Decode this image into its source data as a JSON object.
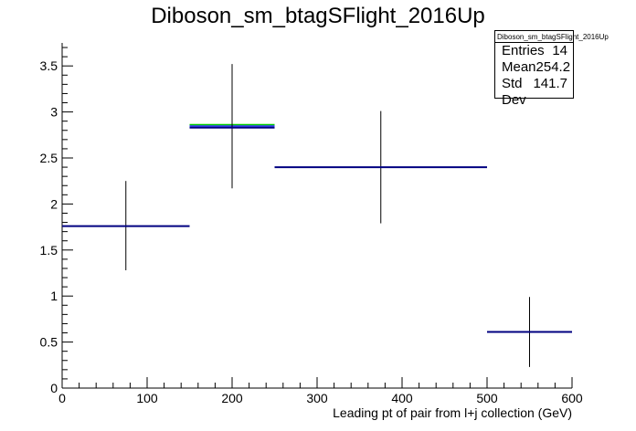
{
  "chart_data": {
    "type": "histogram",
    "title": "Diboson_sm_btagSFlight_2016Up",
    "xlabel": "Leading pt of pair from l+j collection (GeV)",
    "ylabel": "",
    "xlim": [
      0,
      600
    ],
    "ylim": [
      0,
      3.75
    ],
    "x_ticks": [
      0,
      100,
      200,
      300,
      400,
      500,
      600
    ],
    "y_ticks": [
      0,
      0.5,
      1,
      1.5,
      2,
      2.5,
      3,
      3.5
    ],
    "bins": [
      {
        "low": 0,
        "high": 150,
        "center": 75,
        "value": 1.76,
        "err_low": 1.28,
        "err_high": 2.25
      },
      {
        "low": 150,
        "high": 250,
        "center": 200,
        "value": 2.83,
        "err_low": 2.17,
        "err_high": 3.52
      },
      {
        "low": 250,
        "high": 500,
        "center": 375,
        "value": 2.4,
        "err_low": 1.79,
        "err_high": 3.01
      },
      {
        "low": 500,
        "high": 600,
        "center": 550,
        "value": 0.61,
        "err_low": 0.23,
        "err_high": 0.99
      }
    ],
    "overlay_lines": [
      {
        "x_low": 150,
        "x_high": 250,
        "y": 2.86,
        "color": "#00cc00"
      },
      {
        "x_low": 150,
        "x_high": 250,
        "y": 2.845,
        "color": "#4040ff"
      }
    ],
    "line_color": "#000080",
    "error_color": "#000000",
    "stats": {
      "name": "Diboson_sm_btagSFlight_2016Up",
      "rows": [
        {
          "label": "Entries",
          "value": "14"
        },
        {
          "label": "Mean",
          "value": "254.2"
        },
        {
          "label": "Std Dev",
          "value": "141.7"
        }
      ]
    }
  }
}
